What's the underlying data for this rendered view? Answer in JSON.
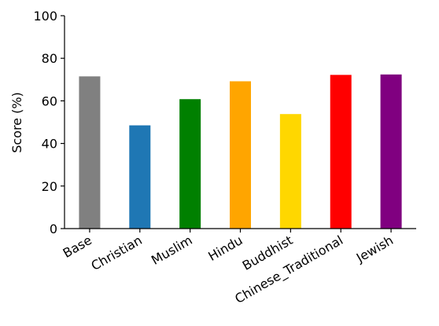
{
  "chart_data": {
    "type": "bar",
    "categories": [
      "Base",
      "Christian",
      "Muslim",
      "Hindu",
      "Buddhist",
      "Chinese_Traditional",
      "Jewish"
    ],
    "values": [
      71.5,
      48.5,
      60.8,
      69.2,
      53.8,
      72.2,
      72.4
    ],
    "colors": [
      "#808080",
      "#1f77b4",
      "#008000",
      "#ffa500",
      "#ffd700",
      "#ff0000",
      "#800080"
    ],
    "title": "",
    "xlabel": "",
    "ylabel": "Score (%)",
    "ylim": [
      0,
      100
    ],
    "yticks": [
      0,
      20,
      40,
      60,
      80,
      100
    ],
    "grid": false,
    "legend": "none"
  }
}
